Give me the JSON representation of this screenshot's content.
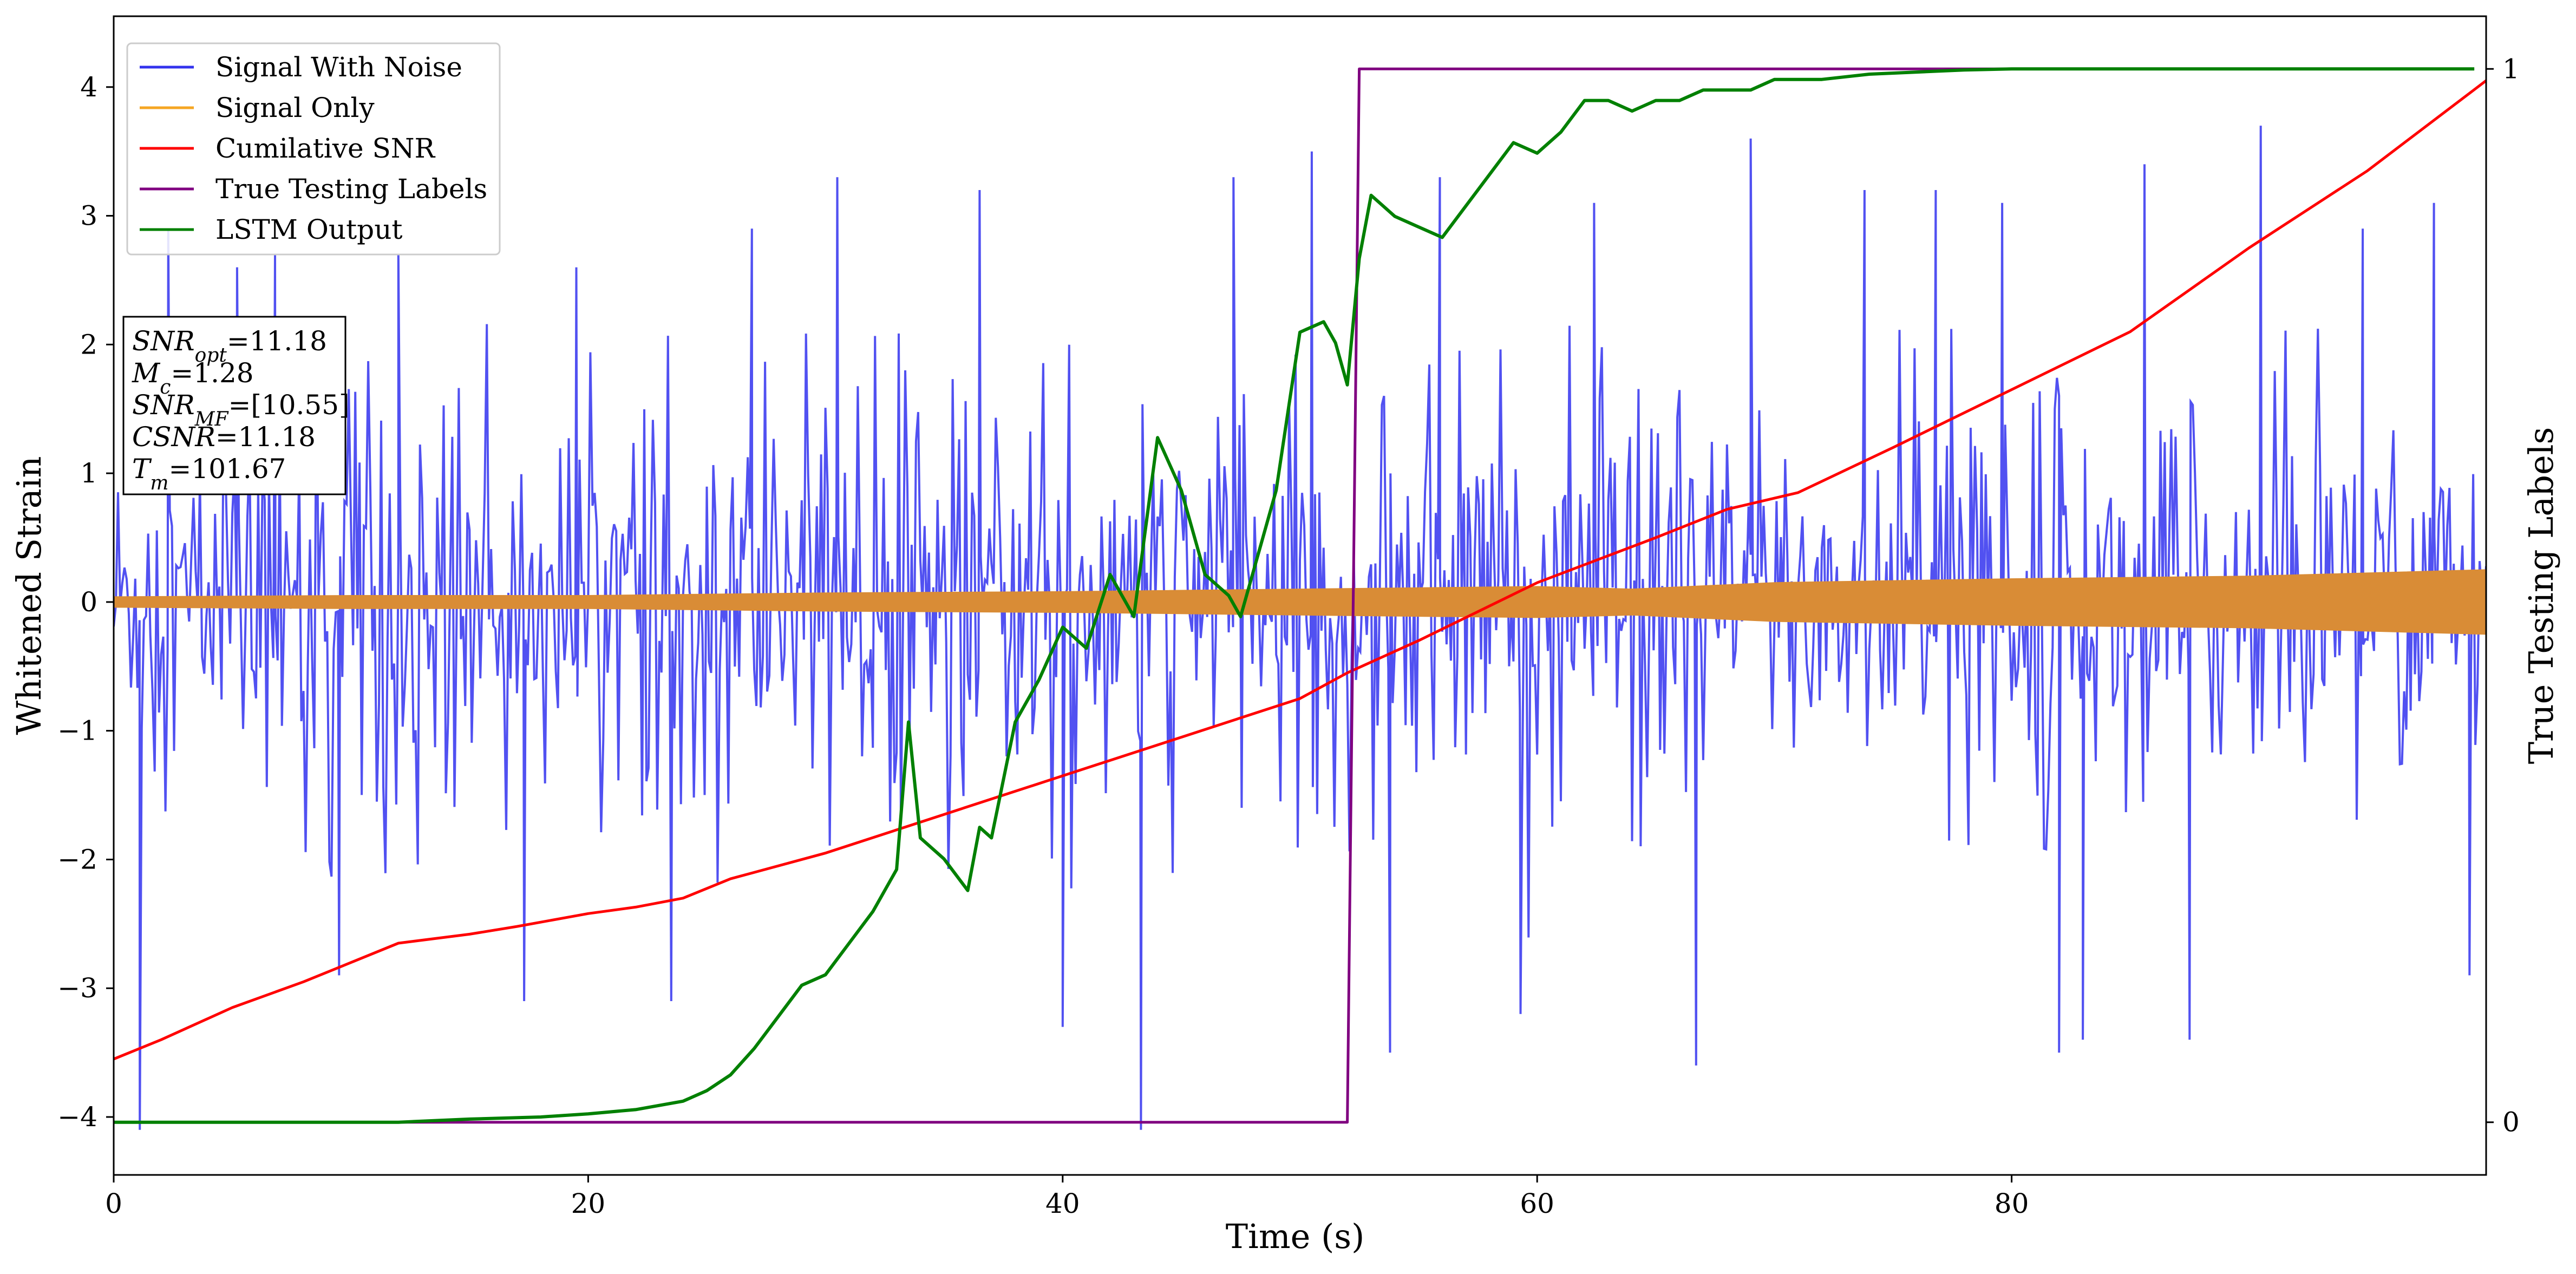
{
  "chart_data": {
    "type": "line",
    "xlabel": "Time (s)",
    "ylabel": "Whitened Strain",
    "y2label": "True Testing Labels",
    "xlim": [
      0,
      100
    ],
    "ylim": [
      -4.45,
      4.55
    ],
    "y2lim": [
      -0.05,
      1.05
    ],
    "xticks": [
      0,
      20,
      40,
      60,
      80
    ],
    "yticks": [
      -4,
      -3,
      -2,
      -1,
      0,
      1,
      2,
      3,
      4
    ],
    "y2ticks": [
      0,
      1
    ],
    "grid": false,
    "legend_position": "top-left",
    "legend": [
      {
        "label": "Signal With Noise",
        "color": "#3333ee"
      },
      {
        "label": "Signal Only",
        "color": "#f5a623"
      },
      {
        "label": "Cumilative SNR",
        "color": "#ff0000"
      },
      {
        "label": "True Testing Labels",
        "color": "#800080"
      },
      {
        "label": "LSTM Output",
        "color": "#008000"
      }
    ],
    "annotation": [
      {
        "sym": "SNR",
        "sub": "opt",
        "value": "=11.18"
      },
      {
        "sym": "M",
        "sub": "c",
        "value": "=1.28"
      },
      {
        "sym": "SNR",
        "sub": "MF",
        "value": "=[10.55]"
      },
      {
        "sym": "CSNR",
        "sub": "",
        "value": "=11.18"
      },
      {
        "sym": "T",
        "sub": "m",
        "value": "=101.67"
      }
    ],
    "series": [
      {
        "name": "Signal With Noise",
        "axis": "left",
        "style": "noise-band",
        "color": "#3333ee",
        "x": [
          0,
          10,
          20,
          30,
          40,
          50,
          60,
          70,
          80,
          90,
          100
        ],
        "band_low": [
          -1.7,
          -1.8,
          -1.9,
          -1.9,
          -1.9,
          -1.8,
          -1.8,
          -1.8,
          -1.8,
          -1.8,
          -1.7
        ],
        "band_high": [
          1.7,
          1.8,
          1.8,
          1.8,
          1.8,
          1.8,
          1.8,
          1.8,
          1.8,
          1.8,
          1.7
        ],
        "extreme_spikes": [
          {
            "x": 1.1,
            "y": -4.1
          },
          {
            "x": 2.3,
            "y": 2.9
          },
          {
            "x": 5.2,
            "y": 2.6
          },
          {
            "x": 6.8,
            "y": 2.7
          },
          {
            "x": 9.5,
            "y": -2.9
          },
          {
            "x": 12.0,
            "y": 2.7
          },
          {
            "x": 17.3,
            "y": -3.1
          },
          {
            "x": 19.5,
            "y": 2.6
          },
          {
            "x": 23.5,
            "y": -3.1
          },
          {
            "x": 26.9,
            "y": 2.9
          },
          {
            "x": 30.5,
            "y": 3.3
          },
          {
            "x": 36.5,
            "y": 3.2
          },
          {
            "x": 40.0,
            "y": -3.3
          },
          {
            "x": 43.3,
            "y": -4.1
          },
          {
            "x": 47.2,
            "y": 3.3
          },
          {
            "x": 50.5,
            "y": 3.5
          },
          {
            "x": 53.8,
            "y": -3.5
          },
          {
            "x": 55.9,
            "y": 3.3
          },
          {
            "x": 59.3,
            "y": -3.2
          },
          {
            "x": 62.4,
            "y": 3.1
          },
          {
            "x": 66.7,
            "y": -3.6
          },
          {
            "x": 69.0,
            "y": 3.6
          },
          {
            "x": 73.8,
            "y": 3.2
          },
          {
            "x": 76.8,
            "y": 3.2
          },
          {
            "x": 79.6,
            "y": 3.1
          },
          {
            "x": 82.0,
            "y": -3.5
          },
          {
            "x": 83.0,
            "y": -3.4
          },
          {
            "x": 85.6,
            "y": 3.4
          },
          {
            "x": 87.5,
            "y": -3.4
          },
          {
            "x": 90.5,
            "y": 3.7
          },
          {
            "x": 94.8,
            "y": 2.9
          },
          {
            "x": 97.8,
            "y": 3.1
          },
          {
            "x": 99.3,
            "y": -2.9
          }
        ]
      },
      {
        "name": "Signal Only",
        "axis": "left",
        "style": "envelope",
        "color": "#d98c36",
        "x": [
          0,
          10,
          20,
          30,
          40,
          50,
          60,
          64,
          70,
          80,
          90,
          100
        ],
        "upper": [
          0.04,
          0.05,
          0.05,
          0.07,
          0.08,
          0.1,
          0.12,
          0.1,
          0.15,
          0.18,
          0.2,
          0.25
        ],
        "lower": [
          -0.04,
          -0.05,
          -0.05,
          -0.07,
          -0.08,
          -0.1,
          -0.12,
          -0.1,
          -0.15,
          -0.18,
          -0.2,
          -0.25
        ]
      },
      {
        "name": "Cumilative SNR",
        "axis": "left",
        "color": "#ff0000",
        "x": [
          0,
          2,
          5,
          8,
          10,
          12,
          15,
          17,
          20,
          22,
          24,
          26,
          30,
          35,
          40,
          45,
          50,
          52,
          55,
          60,
          65,
          68,
          71,
          75,
          80,
          85,
          90,
          95,
          100
        ],
        "y": [
          -3.55,
          -3.4,
          -3.15,
          -2.95,
          -2.8,
          -2.65,
          -2.58,
          -2.52,
          -2.42,
          -2.37,
          -2.3,
          -2.15,
          -1.95,
          -1.65,
          -1.35,
          -1.05,
          -0.75,
          -0.55,
          -0.3,
          0.15,
          0.5,
          0.72,
          0.85,
          1.2,
          1.65,
          2.1,
          2.75,
          3.35,
          4.05
        ]
      },
      {
        "name": "True Testing Labels",
        "axis": "right",
        "color": "#800080",
        "x": [
          0,
          52,
          52.5,
          99.5
        ],
        "y": [
          0,
          0,
          1,
          1
        ]
      },
      {
        "name": "LSTM Output",
        "axis": "right",
        "color": "#008000",
        "x": [
          0,
          12,
          15,
          18,
          20,
          22,
          24,
          25,
          26,
          27,
          28,
          29,
          30,
          31,
          32,
          33,
          33.5,
          34,
          35,
          36,
          36.5,
          37,
          38,
          39,
          40,
          41,
          42,
          43,
          44,
          45,
          46,
          47,
          47.5,
          48,
          49,
          50,
          51,
          51.5,
          52,
          52.5,
          53,
          54,
          55,
          56,
          57,
          58,
          59,
          60,
          61,
          62,
          63,
          64,
          65,
          66,
          67,
          68,
          69,
          70,
          72,
          74,
          76,
          78,
          80,
          85,
          90,
          99.5
        ],
        "y": [
          0,
          0,
          0.003,
          0.005,
          0.008,
          0.012,
          0.02,
          0.03,
          0.045,
          0.07,
          0.1,
          0.13,
          0.14,
          0.17,
          0.2,
          0.24,
          0.38,
          0.27,
          0.25,
          0.22,
          0.28,
          0.27,
          0.38,
          0.42,
          0.47,
          0.45,
          0.52,
          0.48,
          0.65,
          0.6,
          0.52,
          0.5,
          0.48,
          0.52,
          0.6,
          0.75,
          0.76,
          0.74,
          0.7,
          0.82,
          0.88,
          0.86,
          0.85,
          0.84,
          0.87,
          0.9,
          0.93,
          0.92,
          0.94,
          0.97,
          0.97,
          0.96,
          0.97,
          0.97,
          0.98,
          0.98,
          0.98,
          0.99,
          0.99,
          0.995,
          0.997,
          0.999,
          1.0,
          1.0,
          1.0,
          1.0
        ]
      }
    ]
  }
}
